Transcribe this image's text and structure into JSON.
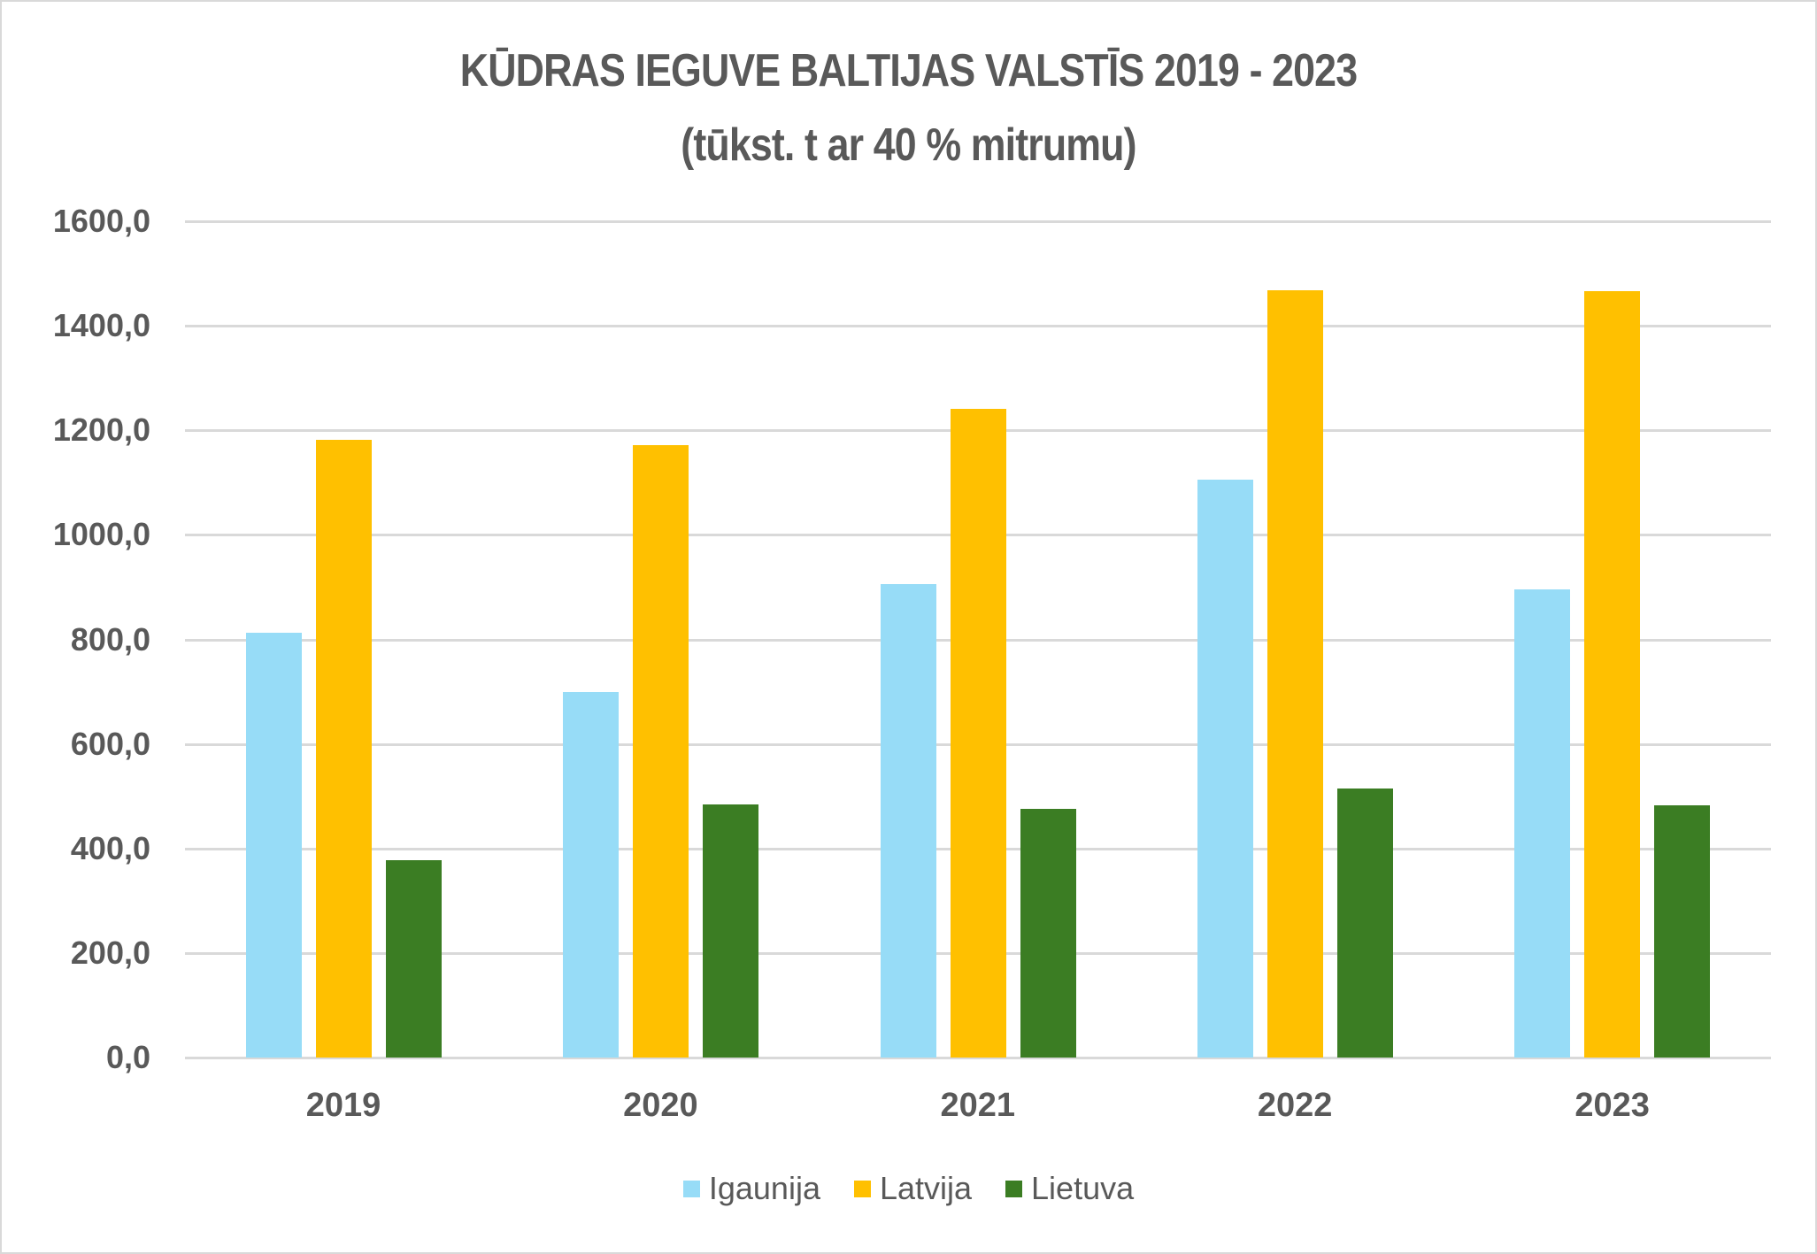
{
  "title": {
    "line1": "KŪDRAS IEGUVE BALTIJAS VALSTĪS 2019 - 2023",
    "line2": "(tūkst. t ar 40 % mitrumu)"
  },
  "y_ticks": [
    "1600,0",
    "1400,0",
    "1200,0",
    "1000,0",
    "800,0",
    "600,0",
    "400,0",
    "200,0",
    "0,0"
  ],
  "legend": [
    {
      "label": "Igaunija",
      "color": "#97dcf7"
    },
    {
      "label": "Latvija",
      "color": "#ffc000"
    },
    {
      "label": "Lietuva",
      "color": "#3b7d23"
    }
  ],
  "chart_data": {
    "type": "bar",
    "title": "KŪDRAS IEGUVE BALTIJAS VALSTĪS 2019 - 2023 (tūkst. t ar 40 % mitrumu)",
    "categories": [
      "2019",
      "2020",
      "2021",
      "2022",
      "2023"
    ],
    "series": [
      {
        "name": "Igaunija",
        "color": "#97dcf7",
        "values": [
          812,
          699,
          905,
          1106,
          895
        ]
      },
      {
        "name": "Latvija",
        "color": "#ffc000",
        "values": [
          1181,
          1171,
          1241,
          1468,
          1467
        ]
      },
      {
        "name": "Lietuva",
        "color": "#3b7d23",
        "values": [
          378,
          485,
          476,
          515,
          483
        ]
      }
    ],
    "xlabel": "",
    "ylabel": "",
    "ylim": [
      0,
      1600
    ],
    "y_tick_step": 200,
    "grid": true,
    "legend_position": "bottom"
  }
}
